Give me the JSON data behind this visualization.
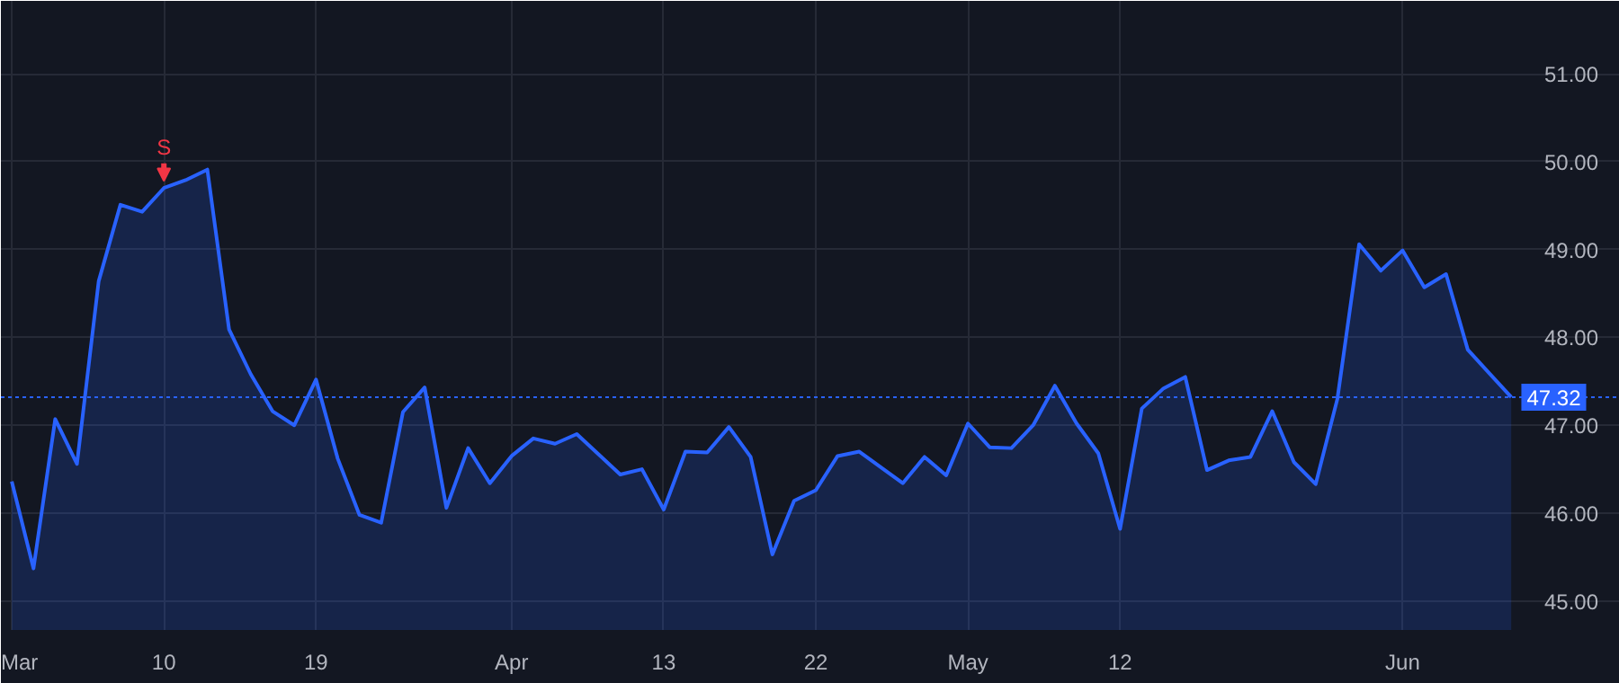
{
  "chart_data": {
    "type": "area",
    "categories": [
      "Mar",
      null,
      null,
      null,
      null,
      null,
      null,
      "10",
      null,
      null,
      null,
      null,
      null,
      null,
      "19",
      null,
      null,
      null,
      null,
      null,
      null,
      null,
      null,
      "Apr",
      null,
      null,
      null,
      null,
      null,
      null,
      "13",
      null,
      null,
      null,
      null,
      null,
      null,
      "22",
      null,
      null,
      null,
      null,
      null,
      null,
      "May",
      null,
      null,
      null,
      null,
      null,
      null,
      "12",
      null,
      null,
      null,
      null,
      null,
      null,
      null,
      null,
      null,
      null,
      null,
      null,
      "Jun",
      null,
      null,
      null,
      null,
      null
    ],
    "series": [
      {
        "color": "#2962ff",
        "values": [
          46.36,
          45.37,
          47.07,
          46.56,
          48.64,
          49.51,
          49.43,
          49.7,
          49.79,
          49.91,
          48.09,
          47.58,
          47.16,
          47.0,
          47.52,
          46.62,
          45.98,
          45.89,
          47.15,
          47.43,
          46.06,
          46.74,
          46.34,
          46.65,
          46.85,
          46.79,
          46.9,
          46.67,
          46.44,
          46.5,
          46.04,
          46.7,
          46.69,
          46.98,
          46.64,
          45.53,
          46.14,
          46.26,
          46.65,
          46.7,
          46.52,
          46.34,
          46.64,
          46.43,
          47.02,
          46.75,
          46.74,
          47.0,
          47.45,
          47.02,
          46.68,
          45.82,
          47.19,
          47.42,
          47.55,
          46.49,
          46.6,
          46.64,
          47.16,
          46.58,
          46.33,
          47.3,
          49.06,
          48.76,
          48.99,
          48.57,
          48.72,
          47.86,
          47.59,
          47.32
        ]
      }
    ],
    "ylim": [
      44.67,
      51.83
    ],
    "yticks": [
      {
        "value": 45,
        "label": "45.00"
      },
      {
        "value": 46,
        "label": "46.00"
      },
      {
        "value": 47,
        "label": "47.00"
      },
      {
        "value": 48,
        "label": "48.00"
      },
      {
        "value": 49,
        "label": "49.00"
      },
      {
        "value": 50,
        "label": "50.00"
      },
      {
        "value": 51,
        "label": "51.00"
      }
    ],
    "ref_lines": [
      {
        "axis": "y",
        "value": 47.32,
        "label": "47.32",
        "color": "#2962ff",
        "line_style": "dotted"
      }
    ],
    "annotations": [
      {
        "text": "S",
        "x": "10",
        "y": 49.7
      }
    ],
    "grid": true
  }
}
